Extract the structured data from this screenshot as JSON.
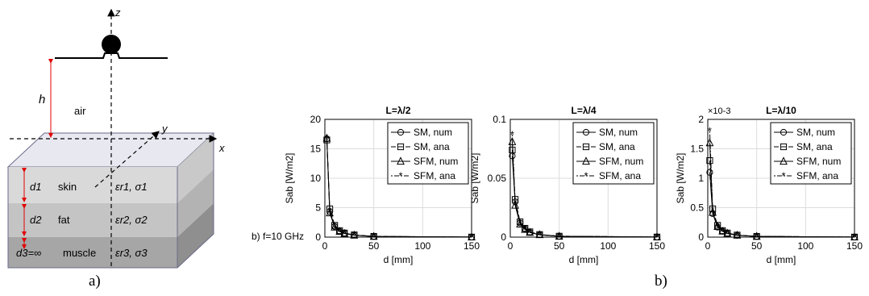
{
  "schematic": {
    "axis_z": "z",
    "axis_y": "y",
    "axis_x": "x",
    "height_symbol": "h",
    "medium": "air",
    "layers": [
      {
        "thickness": "d1",
        "tissue": "skin",
        "props": "εr1, σ1",
        "color": "#d9d9d9"
      },
      {
        "thickness": "d2",
        "tissue": "fat",
        "props": "εr2, σ2",
        "color": "#c4c4c4"
      },
      {
        "thickness": "d3=∞",
        "tissue": "muscle",
        "props": "εr3, σ3",
        "color": "#a6a6a6"
      }
    ],
    "caption": "a)"
  },
  "freq_label": "b) f=10 GHz",
  "caption_b": "b)",
  "chart_data": [
    {
      "type": "line",
      "title": "L=λ/2",
      "xlabel": "d [mm]",
      "ylabel": "Sab [W/m2]",
      "xlim": [
        0,
        150
      ],
      "ylim": [
        0,
        20
      ],
      "xticks": [
        "0",
        "50",
        "100",
        "150"
      ],
      "yticks": [
        "0",
        "5",
        "10",
        "15",
        "20"
      ],
      "exponent": "",
      "grid": true,
      "legend": "top-right",
      "x": [
        2,
        5,
        10,
        15,
        20,
        30,
        50,
        150
      ],
      "series": [
        {
          "name": "SM, num",
          "marker": "circle",
          "values": [
            16.7,
            4.3,
            1.8,
            1.0,
            0.65,
            0.35,
            0.12,
            0.01
          ]
        },
        {
          "name": "SM, ana",
          "marker": "square",
          "values": [
            16.5,
            4.8,
            2.0,
            1.1,
            0.7,
            0.38,
            0.13,
            0.01
          ]
        },
        {
          "name": "SFM, num",
          "marker": "triangle",
          "values": [
            16.8,
            4.1,
            1.7,
            0.95,
            0.6,
            0.33,
            0.11,
            0.01
          ]
        },
        {
          "name": "SFM, ana",
          "marker": "star",
          "values": [
            16.6,
            4.5,
            1.9,
            1.05,
            0.68,
            0.36,
            0.12,
            0.01
          ]
        }
      ]
    },
    {
      "type": "line",
      "title": "L=λ/4",
      "xlabel": "d [mm]",
      "ylabel": "Sab [W/m2]",
      "xlim": [
        0,
        150
      ],
      "ylim": [
        0,
        0.1
      ],
      "xticks": [
        "0",
        "50",
        "100",
        "150"
      ],
      "yticks": [
        "0",
        "0.05",
        "0.1"
      ],
      "exponent": "",
      "grid": true,
      "legend": "top-right",
      "x": [
        2,
        5,
        10,
        15,
        20,
        30,
        50,
        150
      ],
      "series": [
        {
          "name": "SM, num",
          "marker": "circle",
          "values": [
            0.069,
            0.03,
            0.012,
            0.007,
            0.004,
            0.002,
            0.0007,
            0.0001
          ]
        },
        {
          "name": "SM, ana",
          "marker": "square",
          "values": [
            0.074,
            0.032,
            0.013,
            0.0075,
            0.0045,
            0.0022,
            0.0008,
            0.0001
          ]
        },
        {
          "name": "SFM, num",
          "marker": "triangle",
          "values": [
            0.081,
            0.027,
            0.011,
            0.0065,
            0.004,
            0.002,
            0.0007,
            0.0001
          ]
        },
        {
          "name": "SFM, ana",
          "marker": "star",
          "values": [
            0.087,
            0.029,
            0.012,
            0.007,
            0.0042,
            0.0021,
            0.0008,
            0.0001
          ]
        }
      ]
    },
    {
      "type": "line",
      "title": "L=λ/10",
      "xlabel": "d [mm]",
      "ylabel": "Sab [W/m2]",
      "xlim": [
        0,
        150
      ],
      "ylim": [
        0,
        2
      ],
      "xticks": [
        "0",
        "50",
        "100",
        "150"
      ],
      "yticks": [
        "0",
        "0.5",
        "1",
        "1.5",
        "2"
      ],
      "exponent": "×10-3",
      "grid": true,
      "legend": "top-right",
      "x": [
        2,
        5,
        10,
        15,
        20,
        30,
        50,
        150
      ],
      "series": [
        {
          "name": "SM, num",
          "marker": "circle",
          "values": [
            1.1,
            0.4,
            0.17,
            0.1,
            0.06,
            0.03,
            0.012,
            0.001
          ]
        },
        {
          "name": "SM, ana",
          "marker": "square",
          "values": [
            1.3,
            0.48,
            0.2,
            0.11,
            0.07,
            0.035,
            0.013,
            0.001
          ]
        },
        {
          "name": "SFM, num",
          "marker": "triangle",
          "values": [
            1.6,
            0.42,
            0.18,
            0.1,
            0.065,
            0.032,
            0.012,
            0.001
          ]
        },
        {
          "name": "SFM, ana",
          "marker": "star",
          "values": [
            1.8,
            0.46,
            0.19,
            0.105,
            0.068,
            0.034,
            0.013,
            0.001
          ]
        }
      ]
    }
  ]
}
